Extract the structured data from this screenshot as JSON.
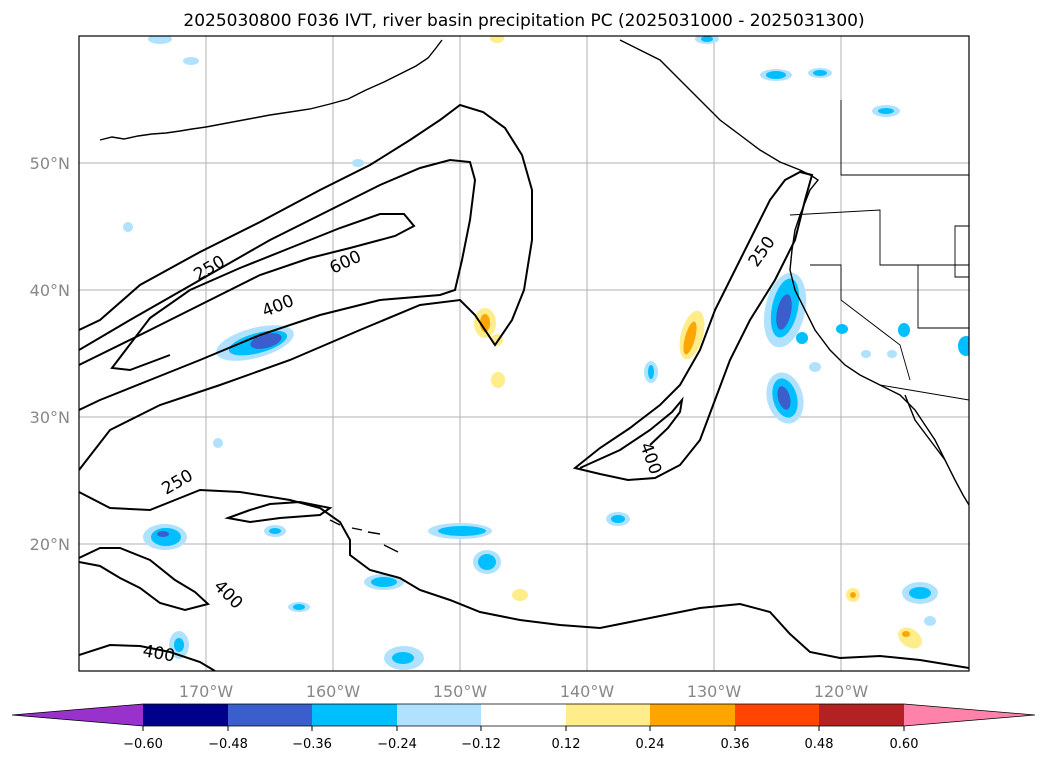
{
  "title": "2025030800 F036 IVT, river basin precipitation PC (2025031000 - 2025031300)",
  "map": {
    "lat_labels": [
      "50°N",
      "40°N",
      "30°N",
      "20°N"
    ],
    "lon_labels": [
      "170°W",
      "160°W",
      "150°W",
      "140°W",
      "130°W",
      "120°W"
    ],
    "ivt_contour_labels": [
      "250",
      "600",
      "400",
      "250",
      "400",
      "250",
      "400",
      "400"
    ]
  },
  "colorbar": {
    "tick_labels": [
      "−0.60",
      "−0.48",
      "−0.36",
      "−0.24",
      "−0.12",
      "0.12",
      "0.24",
      "0.36",
      "0.48",
      "0.60"
    ],
    "colors": [
      "#9932cc",
      "#00008b",
      "#3a5fcd",
      "#00bfff",
      "#b0e2ff",
      "#ffffff",
      "#ffec8b",
      "#ffa500",
      "#ff4500",
      "#b22222",
      "#ff82ab",
      "#ff82ab"
    ]
  },
  "chart_data": {
    "type": "map",
    "title": "2025030800 F036 IVT, river basin precipitation PC (2025031000 - 2025031300)",
    "lon_range": [
      -180,
      -110
    ],
    "lat_range": [
      10,
      60
    ],
    "grid": true,
    "ivt_contour_levels": [
      250,
      400,
      600
    ],
    "colorbar_bounds": [
      -0.6,
      -0.48,
      -0.36,
      -0.24,
      -0.12,
      0.12,
      0.24,
      0.36,
      0.48,
      0.6
    ],
    "colorbar_extend": "both"
  }
}
